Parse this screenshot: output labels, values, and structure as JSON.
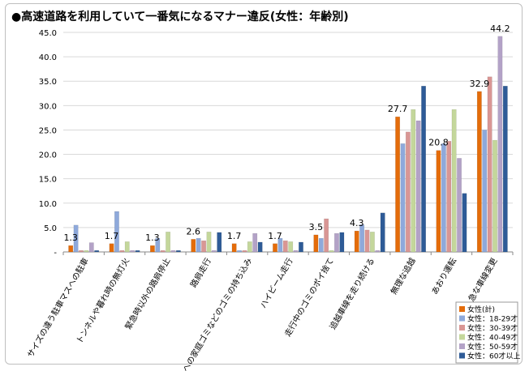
{
  "chart_data": {
    "type": "bar",
    "title": "●高速道路を利用していて一番気になるマナー違反(女性：年齢別)",
    "xlabel": "",
    "ylabel": "",
    "ylim": [
      0,
      45
    ],
    "yticks": [
      "-",
      "5.0",
      "10.0",
      "15.0",
      "20.0",
      "25.0",
      "30.0",
      "35.0",
      "40.0",
      "45.0"
    ],
    "grid": true,
    "legend_position": "bottom-right",
    "categories": [
      "サイズの違う駐車マスへの駐車",
      "トンネルや暮れ時の無灯火",
      "緊急時以外の路肩停止",
      "路肩走行",
      "SAへの家庭ゴミなどのゴミの持ち込み",
      "ハイビーム走行",
      "走行中のゴミのポイ捨て",
      "追越車線を走り続ける",
      "無理な追越",
      "あおり運転",
      "急な車線変更"
    ],
    "series": [
      {
        "name": "女性(計)",
        "color": "#e46c0a",
        "values": [
          1.3,
          1.7,
          1.3,
          2.6,
          1.7,
          1.7,
          3.5,
          4.3,
          27.7,
          20.8,
          32.9
        ]
      },
      {
        "name": "女性：18-29才",
        "color": "#8ea9db",
        "values": [
          5.5,
          8.3,
          2.8,
          2.8,
          0.3,
          2.8,
          2.8,
          5.6,
          22.2,
          22.2,
          25.0
        ]
      },
      {
        "name": "女性：30-39才",
        "color": "#d99694",
        "values": [
          0.3,
          0.3,
          0.3,
          2.3,
          0.3,
          2.3,
          6.8,
          4.5,
          24.6,
          22.7,
          35.9
        ]
      },
      {
        "name": "女性：40-49才",
        "color": "#c4d79b",
        "values": [
          0.3,
          2.1,
          4.1,
          4.1,
          2.1,
          2.1,
          0.3,
          4.1,
          29.2,
          29.2,
          22.9
        ]
      },
      {
        "name": "女性：50-59才",
        "color": "#b3a2c7",
        "values": [
          1.9,
          0.3,
          0.3,
          0.3,
          3.8,
          0.3,
          3.8,
          0.3,
          26.9,
          19.2,
          44.2
        ]
      },
      {
        "name": "女性：60才以上",
        "color": "#2e5b97",
        "values": [
          0.3,
          0.3,
          0.3,
          4.0,
          2.0,
          2.0,
          4.0,
          8.0,
          34.0,
          12.0,
          34.0
        ]
      }
    ],
    "data_labels": [
      {
        "series": 0,
        "index": 0,
        "text": "1.3"
      },
      {
        "series": 0,
        "index": 1,
        "text": "1.7"
      },
      {
        "series": 0,
        "index": 2,
        "text": "1.3"
      },
      {
        "series": 0,
        "index": 3,
        "text": "2.6"
      },
      {
        "series": 0,
        "index": 4,
        "text": "1.7"
      },
      {
        "series": 0,
        "index": 5,
        "text": "1.7"
      },
      {
        "series": 0,
        "index": 6,
        "text": "3.5"
      },
      {
        "series": 0,
        "index": 7,
        "text": "4.3"
      },
      {
        "series": 0,
        "index": 8,
        "text": "27.7"
      },
      {
        "series": 0,
        "index": 9,
        "text": "20.8"
      },
      {
        "series": 0,
        "index": 10,
        "text": "32.9"
      },
      {
        "series": 4,
        "index": 10,
        "text": "44.2"
      }
    ]
  }
}
